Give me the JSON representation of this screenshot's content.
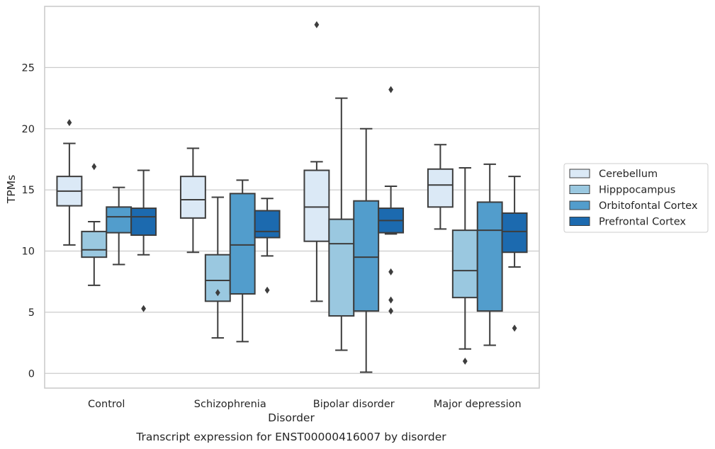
{
  "chart_data": {
    "type": "box",
    "title": "",
    "caption": "Transcript expression for ENST00000416007 by disorder",
    "xlabel": "Disorder",
    "ylabel": "TPMs",
    "ylim": [
      -1.2,
      30
    ],
    "yticks": [
      0,
      5,
      10,
      15,
      20,
      25
    ],
    "grid": true,
    "legend_position": "right",
    "categories": [
      "Control",
      "Schizophrenia",
      "Bipolar disorder",
      "Major depression"
    ],
    "series": [
      {
        "name": "Cerebellum",
        "color": "#dbe9f6",
        "boxes": [
          {
            "whisker_low": 10.5,
            "q1": 13.7,
            "median": 14.9,
            "q3": 16.1,
            "whisker_high": 18.8,
            "outliers": [
              20.5
            ]
          },
          {
            "whisker_low": 9.9,
            "q1": 12.7,
            "median": 14.2,
            "q3": 16.1,
            "whisker_high": 18.4,
            "outliers": []
          },
          {
            "whisker_low": 5.9,
            "q1": 10.8,
            "median": 13.6,
            "q3": 16.6,
            "whisker_high": 17.3,
            "outliers": [
              28.5
            ]
          },
          {
            "whisker_low": 11.8,
            "q1": 13.6,
            "median": 15.4,
            "q3": 16.7,
            "whisker_high": 18.7,
            "outliers": []
          }
        ]
      },
      {
        "name": "Hipppocampus",
        "color": "#9ac8e0",
        "boxes": [
          {
            "whisker_low": 7.2,
            "q1": 9.5,
            "median": 10.1,
            "q3": 11.6,
            "whisker_high": 12.4,
            "outliers": [
              16.9
            ]
          },
          {
            "whisker_low": 2.9,
            "q1": 5.9,
            "median": 7.6,
            "q3": 9.7,
            "whisker_high": 14.4,
            "outliers": [
              6.6
            ]
          },
          {
            "whisker_low": 1.9,
            "q1": 4.7,
            "median": 10.6,
            "q3": 12.6,
            "whisker_high": 22.5,
            "outliers": []
          },
          {
            "whisker_low": 2.0,
            "q1": 6.2,
            "median": 8.4,
            "q3": 11.7,
            "whisker_high": 16.8,
            "outliers": [
              1.0
            ]
          }
        ]
      },
      {
        "name": "Orbitofontal Cortex",
        "color": "#529dcc",
        "boxes": [
          {
            "whisker_low": 8.9,
            "q1": 11.5,
            "median": 12.8,
            "q3": 13.6,
            "whisker_high": 15.2,
            "outliers": []
          },
          {
            "whisker_low": 2.6,
            "q1": 6.5,
            "median": 10.5,
            "q3": 14.7,
            "whisker_high": 15.8,
            "outliers": []
          },
          {
            "whisker_low": 0.1,
            "q1": 5.1,
            "median": 9.5,
            "q3": 14.1,
            "whisker_high": 20.0,
            "outliers": []
          },
          {
            "whisker_low": 2.3,
            "q1": 5.1,
            "median": 11.7,
            "q3": 14.0,
            "whisker_high": 17.1,
            "outliers": []
          }
        ]
      },
      {
        "name": "Prefrontal Cortex",
        "color": "#1c6aaf",
        "boxes": [
          {
            "whisker_low": 9.7,
            "q1": 11.3,
            "median": 12.8,
            "q3": 13.5,
            "whisker_high": 16.6,
            "outliers": [
              5.3
            ]
          },
          {
            "whisker_low": 9.6,
            "q1": 11.1,
            "median": 11.6,
            "q3": 13.3,
            "whisker_high": 14.3,
            "outliers": [
              6.8
            ]
          },
          {
            "whisker_low": 11.4,
            "q1": 11.5,
            "median": 12.5,
            "q3": 13.5,
            "whisker_high": 15.3,
            "outliers": [
              23.2,
              8.3,
              6.0,
              5.1
            ]
          },
          {
            "whisker_low": 8.7,
            "q1": 9.9,
            "median": 11.6,
            "q3": 13.1,
            "whisker_high": 16.1,
            "outliers": [
              3.7
            ]
          }
        ]
      }
    ]
  }
}
